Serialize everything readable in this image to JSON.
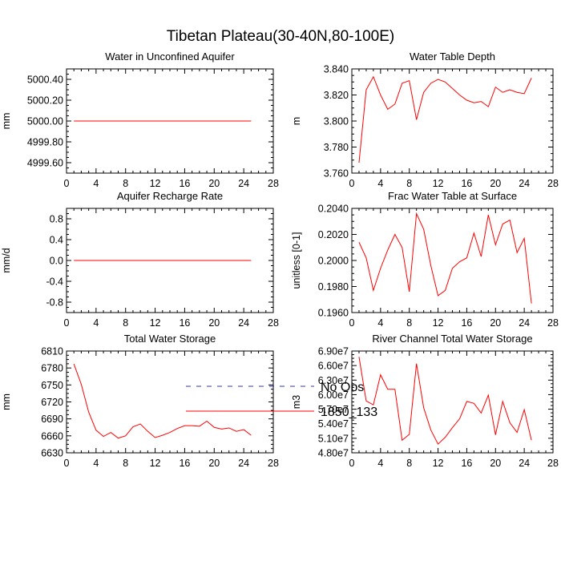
{
  "title": "Tibetan Plateau(30-40N,80-100E)",
  "legend": [
    {
      "label": "No Obs",
      "color": "#3333cc",
      "style": "dashed"
    },
    {
      "label": "1850_133",
      "color": "#ff0000",
      "style": "solid"
    }
  ],
  "chart_data": [
    {
      "type": "line",
      "title": "Water in Unconfined Aquifer",
      "ylabel": "mm",
      "xlabel": "",
      "xlim": [
        0,
        28
      ],
      "ylim": [
        4999.5,
        5000.5
      ],
      "xticks": [
        0,
        4,
        8,
        12,
        16,
        20,
        24,
        28
      ],
      "xtick_labels": [
        "0",
        "4",
        "8",
        "12",
        "16",
        "20",
        "24",
        "28"
      ],
      "yticks": [
        4999.6,
        4999.8,
        5000.0,
        5000.2,
        5000.4
      ],
      "ytick_labels": [
        "4999.60",
        "4999.80",
        "5000.00",
        "5000.20",
        "5000.40"
      ],
      "x": [
        1,
        25
      ],
      "series": [
        {
          "name": "1850_133",
          "values": [
            5000.0,
            5000.0
          ]
        }
      ]
    },
    {
      "type": "line",
      "title": "Water Table Depth",
      "ylabel": "m",
      "xlabel": "",
      "xlim": [
        0,
        28
      ],
      "ylim": [
        3.76,
        3.84
      ],
      "xticks": [
        0,
        4,
        8,
        12,
        16,
        20,
        24,
        28
      ],
      "xtick_labels": [
        "0",
        "4",
        "8",
        "12",
        "16",
        "20",
        "24",
        "28"
      ],
      "yticks": [
        3.76,
        3.78,
        3.8,
        3.82,
        3.84
      ],
      "ytick_labels": [
        "3.760",
        "3.780",
        "3.800",
        "3.820",
        "3.840"
      ],
      "x": [
        1,
        2,
        3,
        4,
        5,
        6,
        7,
        8,
        9,
        10,
        11,
        12,
        13,
        14,
        15,
        16,
        17,
        18,
        19,
        20,
        21,
        22,
        23,
        24,
        25
      ],
      "series": [
        {
          "name": "1850_133",
          "values": [
            3.768,
            3.824,
            3.834,
            3.82,
            3.809,
            3.813,
            3.829,
            3.831,
            3.801,
            3.822,
            3.829,
            3.832,
            3.83,
            3.825,
            3.82,
            3.816,
            3.814,
            3.815,
            3.811,
            3.826,
            3.822,
            3.824,
            3.822,
            3.821,
            3.833
          ]
        }
      ]
    },
    {
      "type": "line",
      "title": "Aquifer Recharge Rate",
      "ylabel": "mm/d",
      "xlabel": "",
      "xlim": [
        0,
        28
      ],
      "ylim": [
        -1.0,
        1.0
      ],
      "xticks": [
        0,
        4,
        8,
        12,
        16,
        20,
        24,
        28
      ],
      "xtick_labels": [
        "0",
        "4",
        "8",
        "12",
        "16",
        "20",
        "24",
        "28"
      ],
      "yticks": [
        -0.8,
        -0.4,
        0.0,
        0.4,
        0.8
      ],
      "ytick_labels": [
        "-0.8",
        "-0.4",
        "0.0",
        "0.4",
        "0.8"
      ],
      "x": [
        1,
        25
      ],
      "series": [
        {
          "name": "1850_133",
          "values": [
            0.0,
            0.0
          ]
        }
      ]
    },
    {
      "type": "line",
      "title": "Frac Water Table at Surface",
      "ylabel": "unitless [0-1]",
      "xlabel": "",
      "xlim": [
        0,
        28
      ],
      "ylim": [
        0.196,
        0.204
      ],
      "xticks": [
        0,
        4,
        8,
        12,
        16,
        20,
        24,
        28
      ],
      "xtick_labels": [
        "0",
        "4",
        "8",
        "12",
        "16",
        "20",
        "24",
        "28"
      ],
      "yticks": [
        0.196,
        0.198,
        0.2,
        0.202,
        0.204
      ],
      "ytick_labels": [
        "0.1960",
        "0.1980",
        "0.2000",
        "0.2020",
        "0.2040"
      ],
      "x": [
        1,
        2,
        3,
        4,
        5,
        6,
        7,
        8,
        9,
        10,
        11,
        12,
        13,
        14,
        15,
        16,
        17,
        18,
        19,
        20,
        21,
        22,
        23,
        24,
        25
      ],
      "series": [
        {
          "name": "1850_133",
          "values": [
            0.2014,
            0.2002,
            0.1977,
            0.1994,
            0.2008,
            0.202,
            0.201,
            0.1976,
            0.2036,
            0.2024,
            0.1996,
            0.1973,
            0.1977,
            0.1994,
            0.1999,
            0.2002,
            0.2021,
            0.2003,
            0.2035,
            0.2012,
            0.2028,
            0.2031,
            0.2006,
            0.2017,
            0.1967
          ]
        }
      ]
    },
    {
      "type": "line",
      "title": "Total Water Storage",
      "ylabel": "mm",
      "xlabel": "",
      "xlim": [
        0,
        28
      ],
      "ylim": [
        6630,
        6810
      ],
      "xticks": [
        0,
        4,
        8,
        12,
        16,
        20,
        24,
        28
      ],
      "xtick_labels": [
        "0",
        "4",
        "8",
        "12",
        "16",
        "20",
        "24",
        "28"
      ],
      "yticks": [
        6630,
        6660,
        6690,
        6720,
        6750,
        6780,
        6810
      ],
      "ytick_labels": [
        "6630",
        "6660",
        "6690",
        "6720",
        "6750",
        "6780",
        "6810"
      ],
      "x": [
        1,
        2,
        3,
        4,
        5,
        6,
        7,
        8,
        9,
        10,
        11,
        12,
        13,
        14,
        15,
        16,
        17,
        18,
        19,
        20,
        21,
        22,
        23,
        24,
        25
      ],
      "series": [
        {
          "name": "1850_133",
          "values": [
            6787,
            6751,
            6702,
            6670,
            6659,
            6666,
            6656,
            6660,
            6676,
            6681,
            6668,
            6657,
            6661,
            6666,
            6673,
            6678,
            6678,
            6677,
            6686,
            6675,
            6672,
            6674,
            6668,
            6671,
            6661
          ]
        }
      ]
    },
    {
      "type": "line",
      "title": "River Channel Total Water Storage",
      "ylabel": "m3",
      "xlabel": "",
      "xlim": [
        0,
        28
      ],
      "ylim": [
        48000000,
        69000000
      ],
      "xticks": [
        0,
        4,
        8,
        12,
        16,
        20,
        24,
        28
      ],
      "xtick_labels": [
        "0",
        "4",
        "8",
        "12",
        "16",
        "20",
        "24",
        "28"
      ],
      "yticks": [
        48000000,
        51000000,
        54000000,
        57000000,
        60000000,
        63000000,
        66000000,
        69000000
      ],
      "ytick_labels": [
        "4.80e7",
        "5.10e7",
        "5.40e7",
        "5.70e7",
        "6.00e7",
        "6.30e7",
        "6.60e7",
        "6.90e7"
      ],
      "x": [
        1,
        2,
        3,
        4,
        5,
        6,
        7,
        8,
        9,
        10,
        11,
        12,
        13,
        14,
        15,
        16,
        17,
        18,
        19,
        20,
        21,
        22,
        23,
        24,
        25
      ],
      "series": [
        {
          "name": "1850_133",
          "values": [
            67800000,
            58700000,
            57900000,
            64100000,
            61100000,
            61100000,
            50600000,
            51800000,
            66400000,
            57300000,
            52700000,
            49800000,
            51200000,
            53200000,
            55000000,
            58600000,
            58200000,
            56200000,
            59900000,
            51700000,
            58600000,
            54200000,
            52200000,
            56900000,
            50600000
          ]
        }
      ]
    }
  ]
}
